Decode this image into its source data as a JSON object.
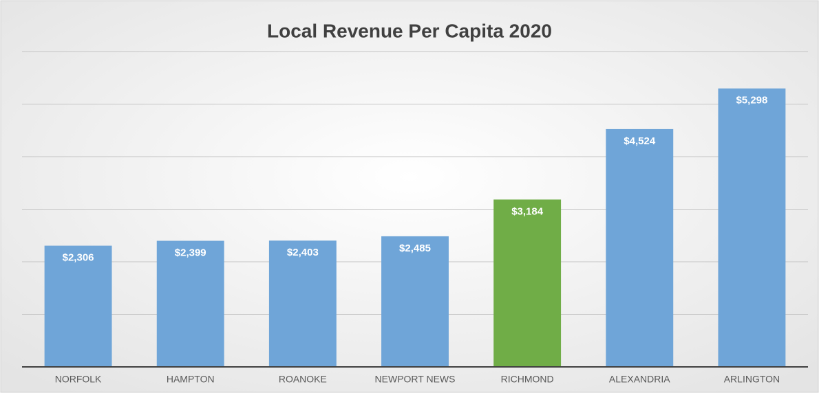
{
  "chart_data": {
    "type": "bar",
    "title": "Local Revenue Per Capita 2020",
    "categories": [
      "NORFOLK",
      "HAMPTON",
      "ROANOKE",
      "NEWPORT NEWS",
      "RICHMOND",
      "ALEXANDRIA",
      "ARLINGTON"
    ],
    "values": [
      2306,
      2399,
      2403,
      2485,
      3184,
      4524,
      5298
    ],
    "value_labels": [
      "$2,306",
      "$2,399",
      "$2,403",
      "$2,485",
      "$3,184",
      "$4,524",
      "$5,298"
    ],
    "colors": [
      "#6fa5d8",
      "#6fa5d8",
      "#6fa5d8",
      "#6fa5d8",
      "#70ad47",
      "#6fa5d8",
      "#6fa5d8"
    ],
    "ylim": [
      0,
      6000
    ],
    "yticks": [
      0,
      1000,
      2000,
      3000,
      4000,
      5000,
      6000
    ],
    "grid": true
  }
}
